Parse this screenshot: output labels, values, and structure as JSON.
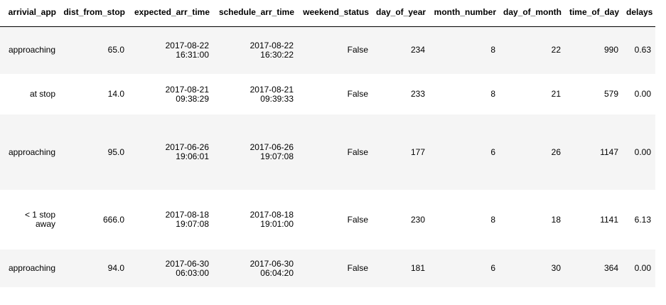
{
  "table": {
    "columns": [
      "arrivial_app",
      "dist_from_stop",
      "expected_arr_time",
      "schedule_arr_time",
      "weekend_status",
      "day_of_year",
      "month_number",
      "day_of_month",
      "time_of_day",
      "delays"
    ],
    "rows": [
      {
        "arrivial_app": "approaching",
        "dist_from_stop": "65.0",
        "expected_date": "2017-08-22",
        "expected_time": "16:31:00",
        "schedule_date": "2017-08-22",
        "schedule_time": "16:30:22",
        "weekend_status": "False",
        "day_of_year": "234",
        "month_number": "8",
        "day_of_month": "22",
        "time_of_day": "990",
        "delays": "0.63"
      },
      {
        "arrivial_app": "at stop",
        "dist_from_stop": "14.0",
        "expected_date": "2017-08-21",
        "expected_time": "09:38:29",
        "schedule_date": "2017-08-21",
        "schedule_time": "09:39:33",
        "weekend_status": "False",
        "day_of_year": "233",
        "month_number": "8",
        "day_of_month": "21",
        "time_of_day": "579",
        "delays": "0.00"
      },
      {
        "arrivial_app": "approaching",
        "dist_from_stop": "95.0",
        "expected_date": "2017-06-26",
        "expected_time": "19:06:01",
        "schedule_date": "2017-06-26",
        "schedule_time": "19:07:08",
        "weekend_status": "False",
        "day_of_year": "177",
        "month_number": "6",
        "day_of_month": "26",
        "time_of_day": "1147",
        "delays": "0.00"
      },
      {
        "arrivial_app_line1": "< 1 stop",
        "arrivial_app_line2": "away",
        "dist_from_stop": "666.0",
        "expected_date": "2017-08-18",
        "expected_time": "19:07:08",
        "schedule_date": "2017-08-18",
        "schedule_time": "19:01:00",
        "weekend_status": "False",
        "day_of_year": "230",
        "month_number": "8",
        "day_of_month": "18",
        "time_of_day": "1141",
        "delays": "6.13"
      },
      {
        "arrivial_app": "approaching",
        "dist_from_stop": "94.0",
        "expected_date": "2017-06-30",
        "expected_time": "06:03:00",
        "schedule_date": "2017-06-30",
        "schedule_time": "06:04:20",
        "weekend_status": "False",
        "day_of_year": "181",
        "month_number": "6",
        "day_of_month": "30",
        "time_of_day": "364",
        "delays": "0.00"
      }
    ]
  }
}
